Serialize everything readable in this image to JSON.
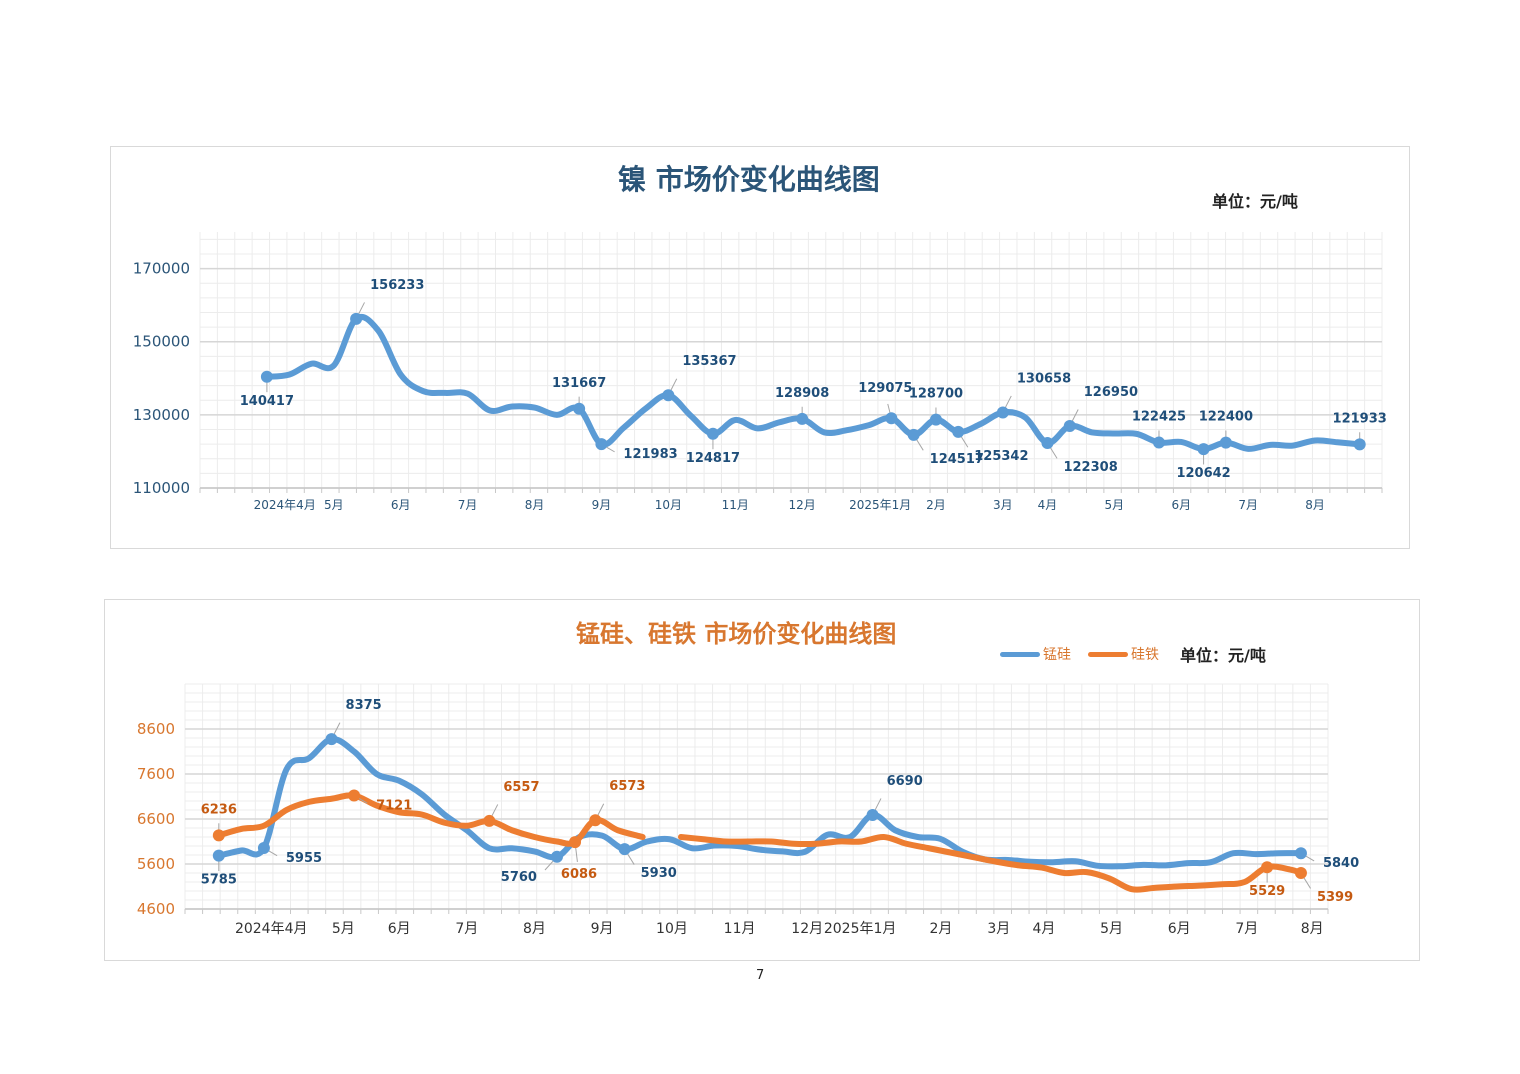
{
  "page": {
    "number": "7"
  },
  "colors": {
    "nickel": "#5b9bd5",
    "mnsi": "#5b9bd5",
    "fesi": "#ed7d31",
    "title1": "#2b5578",
    "title2": "#d8772f",
    "nickel_label": "#1f4e79",
    "mnsi_label": "#1f4e79",
    "fesi_label": "#c55a11",
    "axis1": "#2b5578",
    "axis2": "#d8772f"
  },
  "chart_data": [
    {
      "type": "line",
      "title": "镍 市场价变化曲线图",
      "unit": "单位：元/吨",
      "xlabel": "",
      "ylabel": "",
      "ylim": [
        110000,
        180000
      ],
      "yticks": [
        "110000",
        "130000",
        "150000",
        "170000"
      ],
      "ytick_values": [
        110000,
        130000,
        150000,
        170000
      ],
      "grid": true,
      "x_range": [
        -3,
        50
      ],
      "x_tick_labels": [
        {
          "label": "2024年4月",
          "x": 0.8
        },
        {
          "label": "5月",
          "x": 3
        },
        {
          "label": "6月",
          "x": 6
        },
        {
          "label": "7月",
          "x": 9
        },
        {
          "label": "8月",
          "x": 12
        },
        {
          "label": "9月",
          "x": 15
        },
        {
          "label": "10月",
          "x": 18
        },
        {
          "label": "11月",
          "x": 21
        },
        {
          "label": "12月",
          "x": 24
        },
        {
          "label": "2025年1月",
          "x": 27.5
        },
        {
          "label": "2月",
          "x": 30
        },
        {
          "label": "3月",
          "x": 33
        },
        {
          "label": "4月",
          "x": 35
        },
        {
          "label": "5月",
          "x": 38
        },
        {
          "label": "6月",
          "x": 41
        },
        {
          "label": "7月",
          "x": 44
        },
        {
          "label": "8月",
          "x": 47
        }
      ],
      "series": [
        {
          "name": "镍",
          "x": [
            0,
            1,
            2,
            3,
            4,
            5,
            6,
            7,
            8,
            9,
            10,
            11,
            12,
            13,
            14,
            15,
            16,
            17,
            18,
            19,
            20,
            21,
            22,
            23,
            24,
            25,
            26,
            27,
            28,
            29,
            30,
            31,
            32,
            33,
            34,
            35,
            36,
            37,
            38,
            39,
            40,
            41,
            42,
            43,
            44,
            45,
            46,
            47,
            48,
            49
          ],
          "y": [
            140417,
            141000,
            144000,
            143500,
            156233,
            153000,
            141000,
            136500,
            136000,
            135800,
            131200,
            132300,
            132000,
            130000,
            131667,
            121983,
            126500,
            131800,
            135367,
            129800,
            124817,
            128600,
            126300,
            128000,
            128908,
            125200,
            125800,
            127200,
            129075,
            124517,
            128700,
            125342,
            127500,
            130658,
            129300,
            122308,
            126950,
            125200,
            124900,
            124800,
            122425,
            122600,
            120642,
            122400,
            120700,
            121800,
            121600,
            123000,
            122500,
            121933
          ]
        }
      ],
      "annotations": [
        {
          "x": 0,
          "y": 140417,
          "label": "140417",
          "pos": "below"
        },
        {
          "x": 4,
          "y": 156233,
          "label": "156233",
          "pos": "above-right"
        },
        {
          "x": 14,
          "y": 131667,
          "label": "131667",
          "pos": "above"
        },
        {
          "x": 15,
          "y": 121983,
          "label": "121983",
          "pos": "right"
        },
        {
          "x": 18,
          "y": 135367,
          "label": "135367",
          "pos": "above-right"
        },
        {
          "x": 20,
          "y": 124817,
          "label": "124817",
          "pos": "below"
        },
        {
          "x": 24,
          "y": 128908,
          "label": "128908",
          "pos": "above"
        },
        {
          "x": 28,
          "y": 129075,
          "label": "129075",
          "pos": "above-left"
        },
        {
          "x": 29,
          "y": 124517,
          "label": "124517",
          "pos": "below-right"
        },
        {
          "x": 30,
          "y": 128700,
          "label": "128700",
          "pos": "above"
        },
        {
          "x": 31,
          "y": 125342,
          "label": "125342",
          "pos": "below-right"
        },
        {
          "x": 33,
          "y": 130658,
          "label": "130658",
          "pos": "above-right"
        },
        {
          "x": 35,
          "y": 122308,
          "label": "122308",
          "pos": "below-right"
        },
        {
          "x": 36,
          "y": 126950,
          "label": "126950",
          "pos": "above-right"
        },
        {
          "x": 40,
          "y": 122425,
          "label": "122425",
          "pos": "above"
        },
        {
          "x": 42,
          "y": 120642,
          "label": "120642",
          "pos": "below"
        },
        {
          "x": 43,
          "y": 122400,
          "label": "122400",
          "pos": "above"
        },
        {
          "x": 49,
          "y": 121933,
          "label": "121933",
          "pos": "above"
        }
      ]
    },
    {
      "type": "line",
      "title": "锰硅、硅铁 市场价变化曲线图",
      "unit": "单位：元/吨",
      "legend": [
        "锰硅",
        "硅铁"
      ],
      "legend_position": "top-right",
      "xlabel": "",
      "ylabel": "",
      "ylim": [
        4600,
        9600
      ],
      "yticks": [
        "4600",
        "5600",
        "6600",
        "7600",
        "8600"
      ],
      "ytick_values": [
        4600,
        5600,
        6600,
        7600,
        8600
      ],
      "grid": true,
      "x_range": [
        -1.5,
        49.2
      ],
      "x_tick_labels": [
        {
          "label": "2024年4月",
          "x": 3.3
        },
        {
          "label": "5月",
          "x": 4.9
        },
        {
          "label": "6月",
          "x": 8
        },
        {
          "label": "7月",
          "x": 11
        },
        {
          "label": "8月",
          "x": 14
        },
        {
          "label": "9月",
          "x": 17
        },
        {
          "label": "10月",
          "x": 20.1
        },
        {
          "label": "11月",
          "x": 23.1
        },
        {
          "label": "12月",
          "x": 26.1
        },
        {
          "label": "2025年1月",
          "x": 29.6
        },
        {
          "label": "2月",
          "x": 31.5
        },
        {
          "label": "3月",
          "x": 34.6
        },
        {
          "label": "4月",
          "x": 36.6
        },
        {
          "label": "5月",
          "x": 39.6
        },
        {
          "label": "6月",
          "x": 42.6
        },
        {
          "label": "7月",
          "x": 45.6
        },
        {
          "label": "8月",
          "x": 48.5
        }
      ],
      "series": [
        {
          "name": "锰硅",
          "x": [
            0,
            1,
            2,
            3,
            4,
            5,
            6,
            7,
            8,
            9,
            10,
            11,
            12,
            13,
            14,
            15,
            16,
            17,
            18,
            19,
            20,
            21,
            22,
            23,
            24,
            25,
            26,
            27,
            28,
            29,
            30,
            31,
            32,
            33,
            34,
            35,
            36,
            37,
            38,
            39,
            40,
            41,
            42,
            43,
            44,
            45,
            46,
            47,
            48
          ],
          "y": [
            5785,
            5900,
            5955,
            7700,
            7950,
            8375,
            8100,
            7600,
            7450,
            7150,
            6700,
            6350,
            5950,
            5950,
            5880,
            5760,
            6200,
            6230,
            5930,
            6100,
            6150,
            5950,
            6010,
            6000,
            5920,
            5880,
            5870,
            6250,
            6200,
            6690,
            6350,
            6200,
            6160,
            5870,
            5700,
            5690,
            5650,
            5640,
            5660,
            5560,
            5550,
            5580,
            5570,
            5620,
            5640,
            5840,
            5820,
            5840,
            5840
          ]
        },
        {
          "name": "硅铁",
          "x": [
            0,
            1,
            2,
            3,
            4,
            5,
            6,
            7,
            8,
            9,
            10,
            11,
            12,
            13,
            14,
            15,
            15.8,
            16.7,
            17.7,
            18.8,
            19.5,
            20.5,
            21.5,
            22.5,
            23.5,
            24.5,
            25.5,
            26.5,
            27.5,
            28.5,
            29.5,
            30.5,
            31.5,
            32.5,
            33.5,
            34.5,
            35.5,
            36.5,
            37.5,
            38.5,
            39.5,
            40.5,
            41.5,
            42.5,
            43.5,
            44.5,
            45.5,
            46.5,
            47.5,
            48
          ],
          "y": [
            6236,
            6380,
            6450,
            6800,
            6980,
            7050,
            7121,
            6900,
            6750,
            6700,
            6520,
            6450,
            6557,
            6350,
            6200,
            6100,
            6086,
            6573,
            6350,
            6200,
            null,
            6200,
            6150,
            6100,
            6100,
            6100,
            6050,
            6050,
            6100,
            6100,
            6200,
            6050,
            5950,
            5850,
            5750,
            5650,
            5570,
            5520,
            5400,
            5420,
            5280,
            5040,
            5070,
            5100,
            5120,
            5150,
            5200,
            5529,
            5480,
            5399
          ]
        }
      ],
      "annotations": [
        {
          "series": "锰硅",
          "x": 0,
          "y": 5785,
          "label": "5785",
          "pos": "below"
        },
        {
          "series": "锰硅",
          "x": 2,
          "y": 5955,
          "label": "5955",
          "pos": "right"
        },
        {
          "series": "锰硅",
          "x": 5,
          "y": 8375,
          "label": "8375",
          "pos": "above-right"
        },
        {
          "series": "锰硅",
          "x": 15,
          "y": 5760,
          "label": "5760",
          "pos": "below-left"
        },
        {
          "series": "锰硅",
          "x": 18,
          "y": 5930,
          "label": "5930",
          "pos": "below-right"
        },
        {
          "series": "锰硅",
          "x": 29,
          "y": 6690,
          "label": "6690",
          "pos": "above-right"
        },
        {
          "series": "锰硅",
          "x": 48,
          "y": 5840,
          "label": "5840",
          "pos": "right"
        },
        {
          "series": "硅铁",
          "x": 0,
          "y": 6236,
          "label": "6236",
          "pos": "above"
        },
        {
          "series": "硅铁",
          "x": 6,
          "y": 7121,
          "label": "7121",
          "pos": "right"
        },
        {
          "series": "硅铁",
          "x": 12,
          "y": 6557,
          "label": "6557",
          "pos": "above-right"
        },
        {
          "series": "硅铁",
          "x": 15.8,
          "y": 6086,
          "label": "6086",
          "pos": "below"
        },
        {
          "series": "硅铁",
          "x": 16.7,
          "y": 6573,
          "label": "6573",
          "pos": "above-right"
        },
        {
          "series": "硅铁",
          "x": 46.5,
          "y": 5529,
          "label": "5529",
          "pos": "below"
        },
        {
          "series": "硅铁",
          "x": 48,
          "y": 5399,
          "label": "5399",
          "pos": "below-right"
        }
      ]
    }
  ]
}
